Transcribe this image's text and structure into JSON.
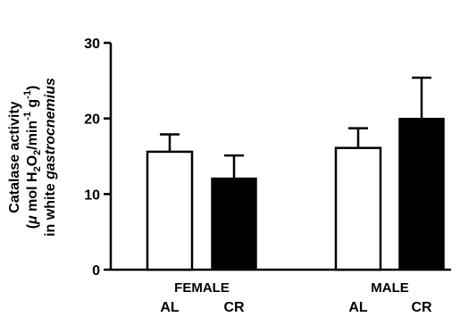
{
  "chart_data": {
    "type": "bar",
    "ylabel_lines": [
      "Catalase activity",
      "(μ mol H₂O₂/min⁻¹ g⁻¹)",
      "in white gastrocnemius"
    ],
    "ylabel": {
      "line1": "Catalase activity",
      "line2_pre": "(",
      "line2_mu": "μ",
      "line2_mid": " mol H",
      "line2_sub1": "2",
      "line2_o": "O",
      "line2_sub2": "2",
      "line2_min": "/min",
      "line2_sup1": "-1",
      "line2_g": " g",
      "line2_sup2": "-1",
      "line2_close": ")",
      "line3_pre": "in white ",
      "line3_italic": "gastrocnemius"
    },
    "ylim": [
      0,
      30
    ],
    "yticks": [
      "0",
      "10",
      "20",
      "30"
    ],
    "groups": [
      "FEMALE",
      "MALE"
    ],
    "categories": [
      "AL",
      "CR",
      "AL",
      "CR"
    ],
    "values": [
      15.6,
      12.1,
      16.1,
      20.0
    ],
    "errors": [
      2.3,
      3.0,
      2.6,
      5.4
    ],
    "fills": [
      "#ffffff",
      "#000000",
      "#ffffff",
      "#000000"
    ],
    "grid": false
  }
}
